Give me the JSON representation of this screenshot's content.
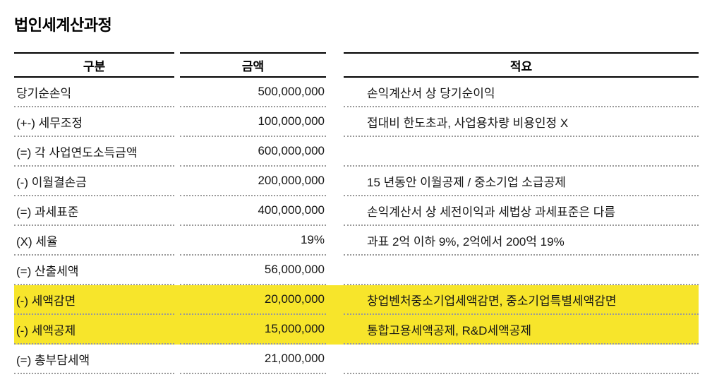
{
  "page": {
    "title": "법인세계산과정"
  },
  "table": {
    "highlight_color": "#f7e52b",
    "headers": {
      "category": "구분",
      "amount": "금액",
      "note": "적요"
    },
    "rows": [
      {
        "category": "당기순손익",
        "amount": "500,000,000",
        "note": "손익계산서 상 당기순이익",
        "highlight": false
      },
      {
        "category": "(+-) 세무조정",
        "amount": "100,000,000",
        "note": "접대비 한도초과, 사업용차량 비용인정 X",
        "highlight": false
      },
      {
        "category": "(=) 각 사업연도소득금액",
        "amount": "600,000,000",
        "note": "",
        "highlight": false
      },
      {
        "category": "(-) 이월결손금",
        "amount": "200,000,000",
        "note": "15 년동안 이월공제 / 중소기업 소급공제",
        "highlight": false
      },
      {
        "category": "(=) 과세표준",
        "amount": "400,000,000",
        "note": "손익계산서 상 세전이익과 세법상 과세표준은 다름",
        "highlight": false
      },
      {
        "category": "(X) 세율",
        "amount": "19%",
        "note": "과표 2억 이하 9%, 2억에서 200억 19%",
        "highlight": false
      },
      {
        "category": "(=) 산출세액",
        "amount": "56,000,000",
        "note": "",
        "highlight": false
      },
      {
        "category": "(-) 세액감면",
        "amount": "20,000,000",
        "note": "창업벤처중소기업세액감면, 중소기업특별세액감면",
        "highlight": true
      },
      {
        "category": "(-) 세액공제",
        "amount": "15,000,000",
        "note": "통합고용세액공제, R&D세액공제",
        "highlight": true
      },
      {
        "category": "(=) 총부담세액",
        "amount": "21,000,000",
        "note": "",
        "highlight": false
      }
    ]
  }
}
